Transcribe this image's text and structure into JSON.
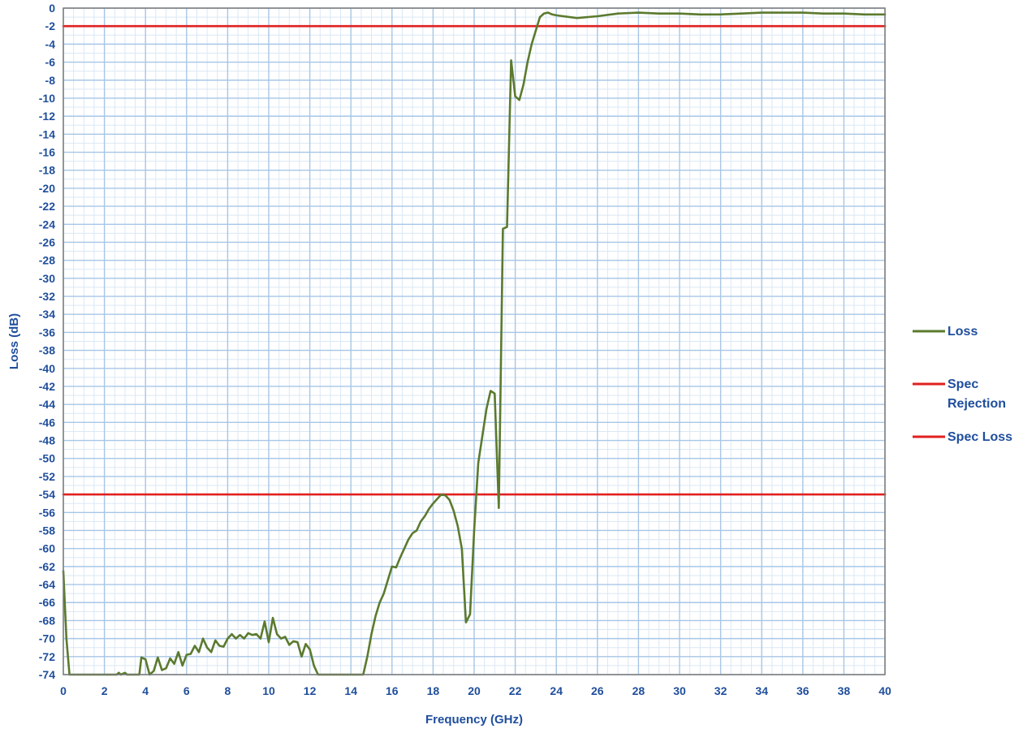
{
  "chart_data": {
    "type": "line",
    "xlabel": "Frequency (GHz)",
    "ylabel": "Loss  (dB)",
    "xlim": [
      0,
      40
    ],
    "ylim": [
      -74,
      0
    ],
    "x_ticks": [
      "0",
      "2",
      "4",
      "6",
      "8",
      "10",
      "12",
      "14",
      "16",
      "18",
      "20",
      "22",
      "24",
      "26",
      "28",
      "30",
      "32",
      "34",
      "36",
      "38",
      "40"
    ],
    "y_ticks": [
      "0",
      "-2",
      "-4",
      "-6",
      "-8",
      "-10",
      "-12",
      "-14",
      "-16",
      "-18",
      "-20",
      "-22",
      "-24",
      "-26",
      "-28",
      "-30",
      "-32",
      "-34",
      "-36",
      "-38",
      "-40",
      "-42",
      "-44",
      "-46",
      "-48",
      "-50",
      "-52",
      "-54",
      "-56",
      "-58",
      "-60",
      "-62",
      "-64",
      "-66",
      "-68",
      "-70",
      "-72",
      "-74"
    ],
    "grid": true,
    "legend_position": "right",
    "series": [
      {
        "name": "Loss",
        "color": "#5b7a2e",
        "points": [
          [
            0.0,
            -62.5
          ],
          [
            0.15,
            -70
          ],
          [
            0.3,
            -74
          ],
          [
            2.6,
            -74
          ],
          [
            2.7,
            -73.8
          ],
          [
            2.8,
            -74
          ],
          [
            3.0,
            -73.8
          ],
          [
            3.1,
            -74
          ],
          [
            3.7,
            -74
          ],
          [
            3.8,
            -72.1
          ],
          [
            4.0,
            -72.3
          ],
          [
            4.2,
            -74
          ],
          [
            4.4,
            -73.6
          ],
          [
            4.6,
            -72.1
          ],
          [
            4.8,
            -73.5
          ],
          [
            5.0,
            -73.3
          ],
          [
            5.2,
            -72.2
          ],
          [
            5.4,
            -72.8
          ],
          [
            5.6,
            -71.5
          ],
          [
            5.8,
            -73
          ],
          [
            6.0,
            -71.8
          ],
          [
            6.2,
            -71.7
          ],
          [
            6.4,
            -70.8
          ],
          [
            6.6,
            -71.5
          ],
          [
            6.8,
            -70
          ],
          [
            7.0,
            -71
          ],
          [
            7.2,
            -71.5
          ],
          [
            7.4,
            -70.2
          ],
          [
            7.6,
            -70.8
          ],
          [
            7.8,
            -70.9
          ],
          [
            8.0,
            -70
          ],
          [
            8.2,
            -69.5
          ],
          [
            8.4,
            -70
          ],
          [
            8.6,
            -69.6
          ],
          [
            8.8,
            -70
          ],
          [
            9.0,
            -69.4
          ],
          [
            9.2,
            -69.6
          ],
          [
            9.4,
            -69.5
          ],
          [
            9.6,
            -70
          ],
          [
            9.8,
            -68.1
          ],
          [
            10.0,
            -70.4
          ],
          [
            10.2,
            -67.7
          ],
          [
            10.4,
            -69.5
          ],
          [
            10.6,
            -70
          ],
          [
            10.8,
            -69.8
          ],
          [
            11.0,
            -70.7
          ],
          [
            11.2,
            -70.3
          ],
          [
            11.4,
            -70.4
          ],
          [
            11.6,
            -72
          ],
          [
            11.8,
            -70.6
          ],
          [
            12.0,
            -71.2
          ],
          [
            12.2,
            -73
          ],
          [
            12.4,
            -74
          ],
          [
            14.6,
            -74
          ],
          [
            14.8,
            -72
          ],
          [
            15.0,
            -69.5
          ],
          [
            15.2,
            -67.5
          ],
          [
            15.4,
            -66
          ],
          [
            15.6,
            -65
          ],
          [
            15.8,
            -63.5
          ],
          [
            16.0,
            -62
          ],
          [
            16.2,
            -62.1
          ],
          [
            16.4,
            -61
          ],
          [
            16.6,
            -60
          ],
          [
            16.8,
            -59
          ],
          [
            17.0,
            -58.3
          ],
          [
            17.2,
            -58
          ],
          [
            17.4,
            -57
          ],
          [
            17.6,
            -56.4
          ],
          [
            17.8,
            -55.6
          ],
          [
            18.0,
            -55
          ],
          [
            18.2,
            -54.5
          ],
          [
            18.4,
            -54
          ],
          [
            18.6,
            -54.1
          ],
          [
            18.8,
            -54.6
          ],
          [
            19.0,
            -55.8
          ],
          [
            19.2,
            -57.5
          ],
          [
            19.4,
            -60
          ],
          [
            19.6,
            -68.2
          ],
          [
            19.8,
            -67.3
          ],
          [
            20.0,
            -58
          ],
          [
            20.2,
            -50.5
          ],
          [
            20.4,
            -47.5
          ],
          [
            20.6,
            -44.5
          ],
          [
            20.8,
            -42.5
          ],
          [
            21.0,
            -42.8
          ],
          [
            21.2,
            -55.5
          ],
          [
            21.4,
            -24.5
          ],
          [
            21.6,
            -24.3
          ],
          [
            21.8,
            -5.8
          ],
          [
            22.0,
            -9.8
          ],
          [
            22.2,
            -10.2
          ],
          [
            22.4,
            -8.5
          ],
          [
            22.6,
            -6
          ],
          [
            22.8,
            -4
          ],
          [
            23.0,
            -2.5
          ],
          [
            23.2,
            -1
          ],
          [
            23.4,
            -0.6
          ],
          [
            23.6,
            -0.5
          ],
          [
            23.8,
            -0.7
          ],
          [
            24.0,
            -0.8
          ],
          [
            25,
            -1.1
          ],
          [
            26,
            -0.9
          ],
          [
            27,
            -0.6
          ],
          [
            28,
            -0.5
          ],
          [
            29,
            -0.6
          ],
          [
            30,
            -0.6
          ],
          [
            31,
            -0.7
          ],
          [
            32,
            -0.7
          ],
          [
            33,
            -0.6
          ],
          [
            34,
            -0.5
          ],
          [
            35,
            -0.5
          ],
          [
            36,
            -0.5
          ],
          [
            37,
            -0.6
          ],
          [
            38,
            -0.6
          ],
          [
            39,
            -0.7
          ],
          [
            40,
            -0.7
          ]
        ]
      },
      {
        "name": "Spec Rejection",
        "color": "#e0201f",
        "points": [
          [
            0,
            -54
          ],
          [
            40,
            -54
          ]
        ]
      },
      {
        "name": "Spec Loss",
        "color": "#e0201f",
        "points": [
          [
            0,
            -2
          ],
          [
            40,
            -2
          ]
        ]
      }
    ],
    "legend": [
      {
        "label": "Loss",
        "color": "#5b7a2e"
      },
      {
        "label": "Spec Rejection",
        "label_lines": [
          "Spec",
          "Rejection"
        ],
        "color": "#e0201f"
      },
      {
        "label": "Spec Loss",
        "color": "#e0201f"
      }
    ],
    "colors": {
      "grid": "#a7c6e6",
      "axis_text": "#1f4e9c",
      "axis_line": "#7a7a7a"
    }
  }
}
